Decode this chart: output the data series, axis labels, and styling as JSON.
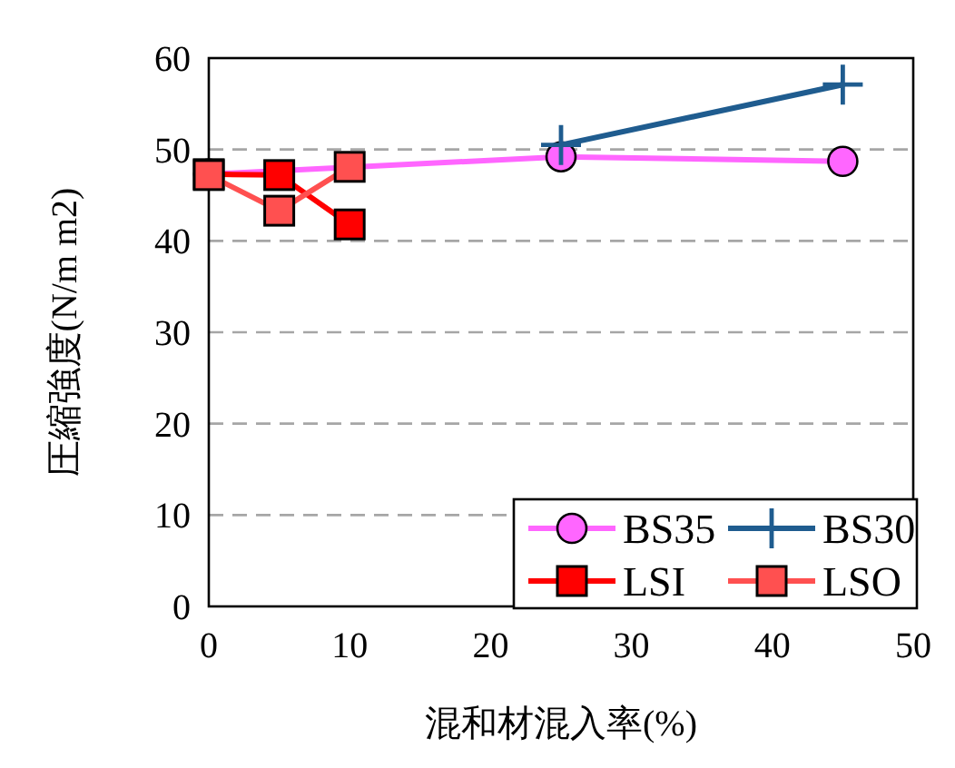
{
  "chart_data": {
    "type": "line",
    "xlabel": "混和材混入率(%)",
    "ylabel": "圧縮強度(N/m m2)",
    "xlim": [
      0,
      50
    ],
    "xticks": [
      0,
      10,
      20,
      30,
      40,
      50
    ],
    "ylim": [
      0,
      60
    ],
    "yticks": [
      0,
      10,
      20,
      30,
      40,
      50,
      60
    ],
    "grid": "y",
    "legend": "bottom right",
    "line_style": "solid",
    "series": [
      {
        "name": "BS35",
        "color": "#ff66ff",
        "marker": "circle",
        "x": [
          0,
          25,
          45
        ],
        "values": [
          47.3,
          49.2,
          48.7
        ]
      },
      {
        "name": "BS30",
        "color": "#1f5c8f",
        "marker": "cross",
        "x": [
          25,
          45
        ],
        "values": [
          50.5,
          57.1
        ]
      },
      {
        "name": "LSI",
        "color": "#ff0000",
        "marker": "square",
        "x": [
          0,
          5,
          10
        ],
        "values": [
          47.3,
          47.2,
          41.8
        ]
      },
      {
        "name": "LSO",
        "color": "#ff5050",
        "marker": "square",
        "x": [
          0,
          5,
          10
        ],
        "values": [
          47.2,
          43.3,
          48.1
        ]
      }
    ]
  }
}
